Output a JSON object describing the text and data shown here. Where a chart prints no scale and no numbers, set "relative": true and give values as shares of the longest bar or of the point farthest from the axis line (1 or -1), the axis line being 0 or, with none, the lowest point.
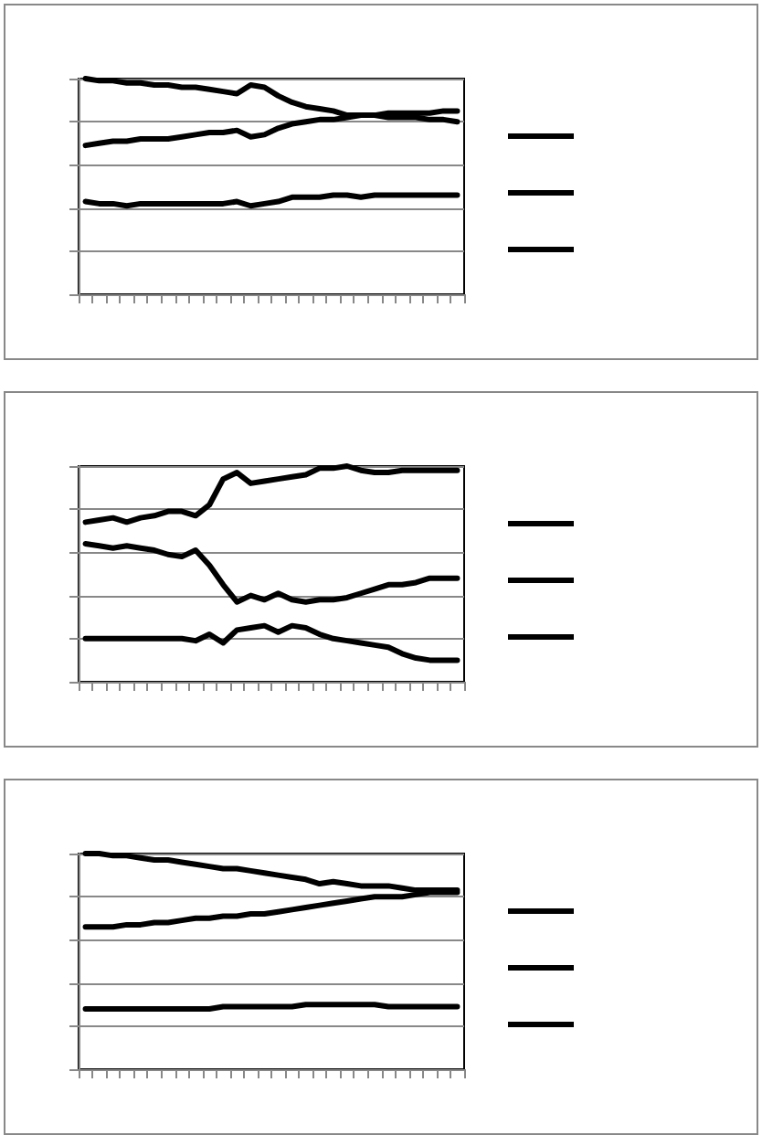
{
  "chart_data": [
    {
      "type": "line",
      "relative": true,
      "grid": "y",
      "line_style": "solid",
      "categories": [
        null,
        null,
        null,
        null,
        null,
        null,
        null,
        null,
        null,
        null,
        null,
        null,
        null,
        null,
        null,
        null,
        null,
        null,
        null,
        null,
        null,
        null,
        null,
        null,
        null,
        null,
        null,
        null
      ],
      "series": [
        {
          "color": "#000000",
          "values": [
            1.0,
            0.99,
            0.99,
            0.98,
            0.98,
            0.97,
            0.97,
            0.96,
            0.96,
            0.95,
            0.94,
            0.93,
            0.97,
            0.96,
            0.92,
            0.89,
            0.87,
            0.86,
            0.85,
            0.83,
            0.83,
            0.83,
            0.82,
            0.82,
            0.82,
            0.81,
            0.81,
            0.8
          ]
        },
        {
          "color": "#000000",
          "values": [
            0.69,
            0.7,
            0.71,
            0.71,
            0.72,
            0.72,
            0.72,
            0.73,
            0.74,
            0.75,
            0.75,
            0.76,
            0.73,
            0.74,
            0.77,
            0.79,
            0.8,
            0.81,
            0.81,
            0.82,
            0.83,
            0.83,
            0.84,
            0.84,
            0.84,
            0.84,
            0.85,
            0.85
          ]
        },
        {
          "color": "#000000",
          "values": [
            0.43,
            0.42,
            0.42,
            0.41,
            0.42,
            0.42,
            0.42,
            0.42,
            0.42,
            0.42,
            0.42,
            0.43,
            0.41,
            0.42,
            0.43,
            0.45,
            0.45,
            0.45,
            0.46,
            0.46,
            0.45,
            0.46,
            0.46,
            0.46,
            0.46,
            0.46,
            0.46,
            0.46
          ]
        }
      ]
    },
    {
      "type": "line",
      "relative": true,
      "grid": "y",
      "line_style": "solid",
      "categories": [
        null,
        null,
        null,
        null,
        null,
        null,
        null,
        null,
        null,
        null,
        null,
        null,
        null,
        null,
        null,
        null,
        null,
        null,
        null,
        null,
        null,
        null,
        null,
        null,
        null,
        null,
        null,
        null
      ],
      "series": [
        {
          "color": "#000000",
          "values": [
            0.74,
            0.75,
            0.76,
            0.74,
            0.76,
            0.77,
            0.79,
            0.79,
            0.77,
            0.82,
            0.94,
            0.97,
            0.92,
            0.93,
            0.94,
            0.95,
            0.96,
            0.99,
            0.99,
            1.0,
            0.98,
            0.97,
            0.97,
            0.98,
            0.98,
            0.98,
            0.98,
            0.98
          ]
        },
        {
          "color": "#000000",
          "values": [
            0.64,
            0.63,
            0.62,
            0.63,
            0.62,
            0.61,
            0.59,
            0.58,
            0.61,
            0.54,
            0.45,
            0.37,
            0.4,
            0.38,
            0.41,
            0.38,
            0.37,
            0.38,
            0.38,
            0.39,
            0.41,
            0.43,
            0.45,
            0.45,
            0.46,
            0.48,
            0.48,
            0.48
          ]
        },
        {
          "color": "#000000",
          "values": [
            0.2,
            0.2,
            0.2,
            0.2,
            0.2,
            0.2,
            0.2,
            0.2,
            0.19,
            0.22,
            0.18,
            0.24,
            0.25,
            0.26,
            0.23,
            0.26,
            0.25,
            0.22,
            0.2,
            0.19,
            0.18,
            0.17,
            0.16,
            0.13,
            0.11,
            0.1,
            0.1,
            0.1
          ]
        }
      ]
    },
    {
      "type": "line",
      "relative": true,
      "grid": "y",
      "line_style": "solid",
      "categories": [
        null,
        null,
        null,
        null,
        null,
        null,
        null,
        null,
        null,
        null,
        null,
        null,
        null,
        null,
        null,
        null,
        null,
        null,
        null,
        null,
        null,
        null,
        null,
        null,
        null,
        null,
        null,
        null
      ],
      "series": [
        {
          "color": "#000000",
          "values": [
            1.0,
            1.0,
            0.99,
            0.99,
            0.98,
            0.97,
            0.97,
            0.96,
            0.95,
            0.94,
            0.93,
            0.93,
            0.92,
            0.91,
            0.9,
            0.89,
            0.88,
            0.86,
            0.87,
            0.86,
            0.85,
            0.85,
            0.85,
            0.84,
            0.83,
            0.83,
            0.83,
            0.83
          ]
        },
        {
          "color": "#000000",
          "values": [
            0.66,
            0.66,
            0.66,
            0.67,
            0.67,
            0.68,
            0.68,
            0.69,
            0.7,
            0.7,
            0.71,
            0.71,
            0.72,
            0.72,
            0.73,
            0.74,
            0.75,
            0.76,
            0.77,
            0.78,
            0.79,
            0.8,
            0.8,
            0.8,
            0.81,
            0.82,
            0.82,
            0.82
          ]
        },
        {
          "color": "#000000",
          "values": [
            0.28,
            0.28,
            0.28,
            0.28,
            0.28,
            0.28,
            0.28,
            0.28,
            0.28,
            0.28,
            0.29,
            0.29,
            0.29,
            0.29,
            0.29,
            0.29,
            0.3,
            0.3,
            0.3,
            0.3,
            0.3,
            0.3,
            0.29,
            0.29,
            0.29,
            0.29,
            0.29,
            0.29
          ]
        }
      ]
    }
  ]
}
